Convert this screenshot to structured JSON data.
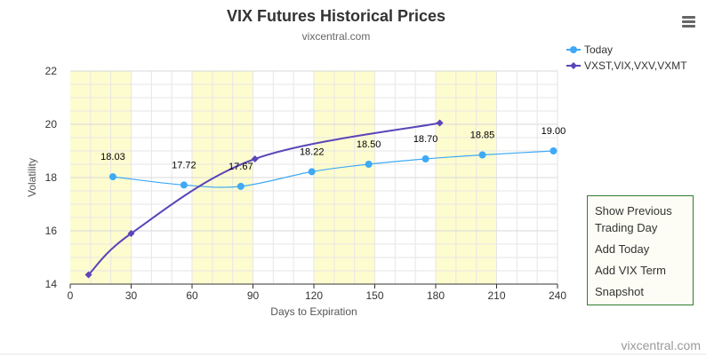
{
  "chart_data": {
    "type": "line",
    "title": "VIX Futures Historical Prices",
    "subtitle": "vixcentral.com",
    "xlabel": "Days to Expiration",
    "ylabel": "Volatility",
    "xlim": [
      0,
      240
    ],
    "ylim": [
      14,
      22
    ],
    "x_ticks": [
      0,
      30,
      60,
      90,
      120,
      150,
      180,
      210,
      240
    ],
    "y_ticks": [
      14,
      16,
      18,
      20,
      22
    ],
    "shaded_bands": [
      [
        0,
        30
      ],
      [
        60,
        90
      ],
      [
        120,
        150
      ],
      [
        180,
        210
      ]
    ],
    "grid": true,
    "legend_position": "top-right",
    "series": [
      {
        "name": "Today",
        "color": "#3fa9f5",
        "marker": "circle",
        "x": [
          21,
          56,
          84,
          119,
          147,
          175,
          203,
          238
        ],
        "y": [
          18.03,
          17.72,
          17.67,
          18.22,
          18.5,
          18.7,
          18.85,
          19.0
        ],
        "labels": [
          "18.03",
          "17.72",
          "17.67",
          "18.22",
          "18.50",
          "18.70",
          "18.85",
          "19.00"
        ]
      },
      {
        "name": "VXST,VIX,VXV,VXMT",
        "color": "#5b45b8",
        "marker": "diamond",
        "x": [
          9,
          30,
          91,
          182
        ],
        "y": [
          14.35,
          15.9,
          18.7,
          20.05
        ]
      }
    ]
  },
  "credit": "vixcentral.com",
  "menu": {
    "icon": "hamburger-menu-icon"
  },
  "side_panel": {
    "items": [
      "Show Previous Trading Day",
      "Add Today",
      "Add VIX Term",
      "Snapshot"
    ]
  }
}
